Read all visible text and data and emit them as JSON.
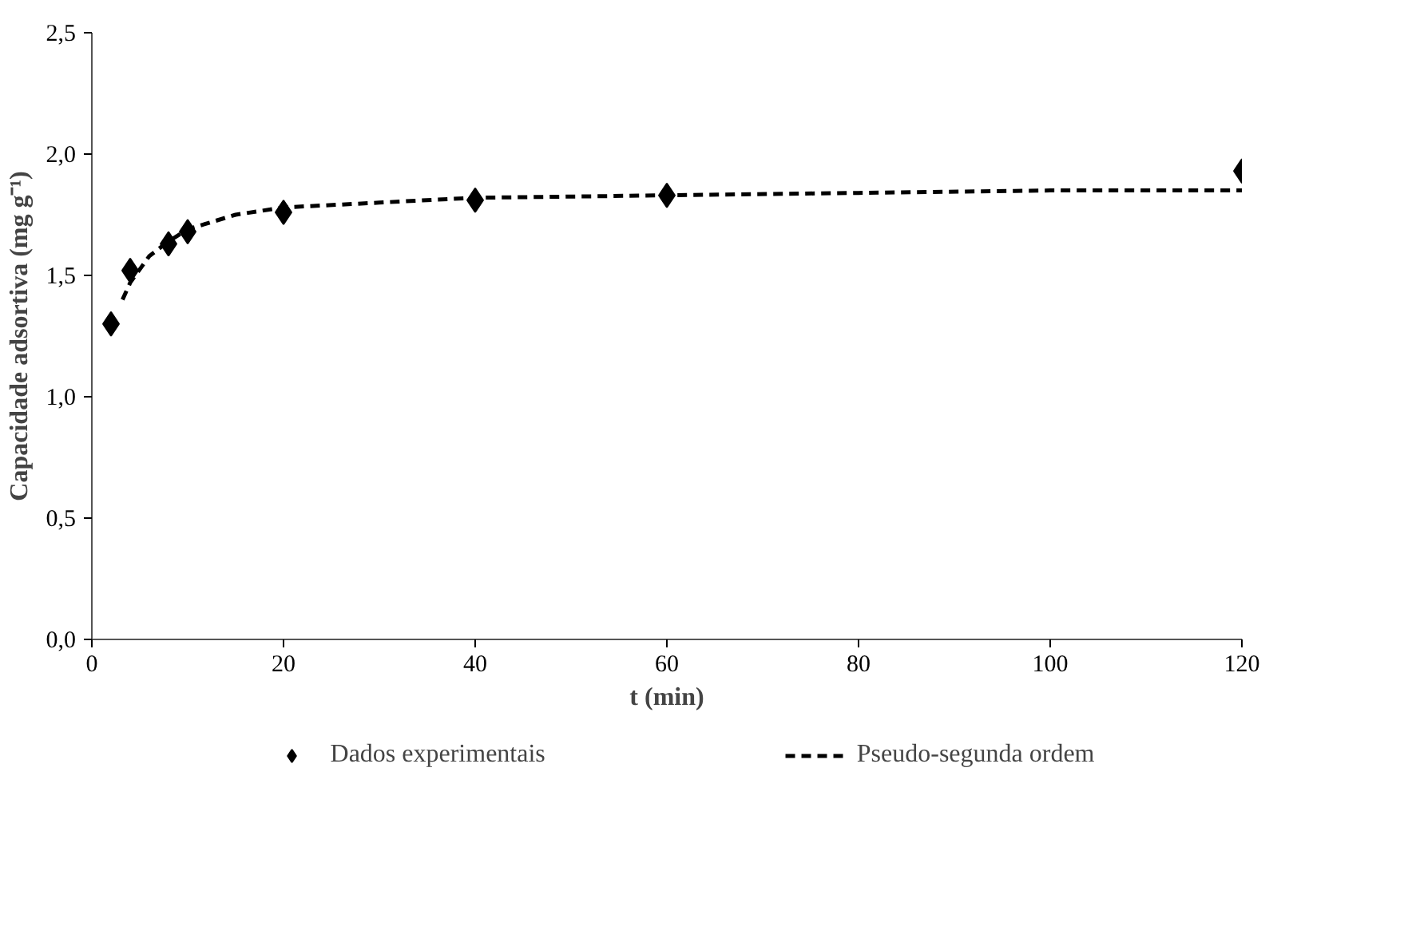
{
  "chart_data": {
    "type": "scatter",
    "xlabel": "t (min)",
    "ylabel": "Capacidade adsortiva (mg g⁻¹)",
    "xlim": [
      0,
      120
    ],
    "xticks": [
      0,
      20,
      40,
      60,
      80,
      100,
      120
    ],
    "ylim": [
      0,
      2.5
    ],
    "yticks": [
      {
        "value": 0,
        "label": "0,0"
      },
      {
        "value": 0.5,
        "label": "0,5"
      },
      {
        "value": 1,
        "label": "1,0"
      },
      {
        "value": 1.5,
        "label": "1,5"
      },
      {
        "value": 2,
        "label": "2,0"
      },
      {
        "value": 2.5,
        "label": "2,5"
      }
    ],
    "grid": false,
    "legend": "bottom",
    "series": [
      {
        "name": "Dados experimentais",
        "marker": "diamond",
        "color": "#000000",
        "x": [
          2,
          4,
          8,
          10,
          20,
          40,
          60,
          120
        ],
        "values": [
          1.3,
          1.52,
          1.63,
          1.68,
          1.76,
          1.81,
          1.83,
          1.93
        ]
      },
      {
        "name": "Pseudo-segunda ordem",
        "type": "line",
        "line_style": "dashed",
        "color": "#000000",
        "x": [
          3.2,
          4,
          6,
          8,
          10,
          15,
          20,
          30,
          40,
          60,
          80,
          100,
          120
        ],
        "values": [
          1.4,
          1.47,
          1.58,
          1.64,
          1.69,
          1.75,
          1.78,
          1.8,
          1.82,
          1.83,
          1.84,
          1.85,
          1.85
        ]
      }
    ]
  }
}
